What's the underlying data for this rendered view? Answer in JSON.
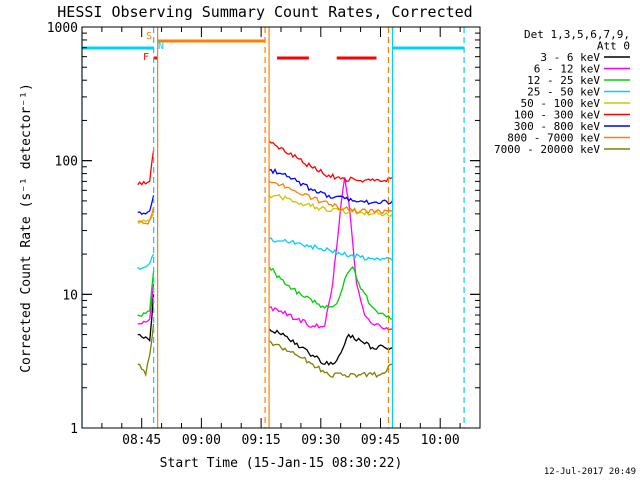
{
  "chart_data": {
    "type": "line",
    "title": "HESSI Observing Summary Count Rates, Corrected",
    "xlabel": "Start Time (15-Jan-15 08:30:22)",
    "ylabel": "Corrected Count Rate (s⁻¹ detector⁻¹)",
    "yscale": "log",
    "ylim": [
      1,
      1000
    ],
    "xlim_minutes_after_0830": [
      0,
      100
    ],
    "x_ticks": [
      "08:45",
      "09:00",
      "09:15",
      "09:30",
      "09:45",
      "10:00"
    ],
    "y_ticks": [
      "1",
      "10",
      "100",
      "1000"
    ],
    "legend_header": [
      "Det 1,3,5,6,7,9,",
      "Att 0"
    ],
    "legend_position": "right",
    "timestamp": "12-Jul-2017 20:49",
    "flags": [
      {
        "label": "S",
        "color": "#ff8000",
        "segments": [
          [
            "08:49",
            "09:16"
          ]
        ]
      },
      {
        "label": "N",
        "color": "#00d0ff",
        "segments": [
          [
            "08:30",
            "08:48"
          ],
          [
            "09:48",
            "10:06"
          ]
        ]
      },
      {
        "label": "F",
        "color": "#ff0000",
        "segments": [
          [
            "08:48",
            "08:49"
          ],
          [
            "09:19",
            "09:27"
          ],
          [
            "09:34",
            "09:44"
          ]
        ]
      }
    ],
    "intervals": [
      {
        "color": "#00d0ff",
        "style": "solid",
        "at": [
          "08:30",
          "09:48"
        ]
      },
      {
        "color": "#00d0ff",
        "style": "dashed",
        "at": [
          "08:48",
          "10:06"
        ]
      },
      {
        "color": "#ff8000",
        "style": "solid",
        "at": [
          "08:49",
          "09:17"
        ]
      },
      {
        "color": "#ff8000",
        "style": "dashed",
        "at": [
          "09:16",
          "09:47"
        ]
      }
    ],
    "series": [
      {
        "name": "3 - 6 keV",
        "color": "#000000",
        "x": [
          "08:44",
          "08:46",
          "08:47",
          "08:48",
          "09:17",
          "09:20",
          "09:25",
          "09:28",
          "09:31",
          "09:34",
          "09:37",
          "09:40",
          "09:43",
          "09:46",
          "09:48"
        ],
        "y": [
          5.0,
          4.8,
          4.5,
          10,
          5.5,
          5.0,
          4.0,
          3.5,
          3.0,
          3.2,
          5.0,
          4.5,
          4.0,
          4.0,
          4.0
        ]
      },
      {
        "name": "6 - 12 keV",
        "color": "#ff00ff",
        "x": [
          "08:44",
          "08:46",
          "08:47",
          "08:48",
          "09:17",
          "09:20",
          "09:24",
          "09:28",
          "09:31",
          "09:33",
          "09:35",
          "09:36",
          "09:37",
          "09:39",
          "09:41",
          "09:43",
          "09:46",
          "09:48"
        ],
        "y": [
          6.0,
          6.2,
          6.5,
          12,
          8.0,
          7.5,
          6.5,
          5.8,
          5.8,
          12,
          45,
          75,
          50,
          12,
          7.0,
          6.0,
          5.5,
          5.5
        ]
      },
      {
        "name": "12 - 25 keV",
        "color": "#00d000",
        "x": [
          "08:44",
          "08:46",
          "08:47",
          "08:48",
          "09:17",
          "09:20",
          "09:23",
          "09:26",
          "09:29",
          "09:32",
          "09:34",
          "09:36",
          "09:38",
          "09:40",
          "09:43",
          "09:46",
          "09:48"
        ],
        "y": [
          7.0,
          7.2,
          7.5,
          15,
          16,
          13,
          11,
          9.5,
          8.5,
          8.0,
          8.5,
          13,
          16,
          11,
          8.0,
          7.0,
          6.5
        ]
      },
      {
        "name": "25 - 50 keV",
        "color": "#00d0ff",
        "x": [
          "08:44",
          "08:46",
          "08:47",
          "08:48",
          "09:17",
          "09:20",
          "09:25",
          "09:30",
          "09:35",
          "09:40",
          "09:45",
          "09:48"
        ],
        "y": [
          16,
          16,
          17,
          20,
          26,
          25,
          24,
          22,
          20,
          19,
          18,
          18
        ]
      },
      {
        "name": "50 - 100 keV",
        "color": "#c8c800",
        "x": [
          "08:44",
          "08:46",
          "08:47",
          "08:48",
          "09:17",
          "09:20",
          "09:25",
          "09:30",
          "09:35",
          "09:40",
          "09:45",
          "09:48"
        ],
        "y": [
          34,
          35,
          36,
          40,
          55,
          53,
          48,
          44,
          42,
          41,
          40,
          40
        ]
      },
      {
        "name": "100 - 300 keV",
        "color": "#ff0000",
        "x": [
          "08:44",
          "08:46",
          "08:47",
          "08:48",
          "09:17",
          "09:20",
          "09:24",
          "09:28",
          "09:32",
          "09:36",
          "09:40",
          "09:45",
          "09:48"
        ],
        "y": [
          66,
          67,
          70,
          120,
          140,
          125,
          105,
          88,
          78,
          73,
          71,
          70,
          75
        ]
      },
      {
        "name": "300 - 800 keV",
        "color": "#0000ff",
        "x": [
          "08:44",
          "08:46",
          "08:47",
          "08:48",
          "09:17",
          "09:20",
          "09:24",
          "09:28",
          "09:32",
          "09:36",
          "09:40",
          "09:45",
          "09:48"
        ],
        "y": [
          41,
          40,
          42,
          55,
          85,
          80,
          70,
          60,
          55,
          52,
          50,
          48,
          50
        ]
      },
      {
        "name": "800 - 7000 keV",
        "color": "#ff8000",
        "x": [
          "08:44",
          "08:46",
          "08:47",
          "08:48",
          "09:17",
          "09:20",
          "09:24",
          "09:28",
          "09:32",
          "09:36",
          "09:40",
          "09:45",
          "09:48"
        ],
        "y": [
          35,
          34,
          36,
          45,
          70,
          66,
          58,
          52,
          47,
          44,
          42,
          41,
          42
        ]
      },
      {
        "name": "7000 - 20000 keV",
        "color": "#808000",
        "x": [
          "08:44",
          "08:46",
          "08:47",
          "08:48",
          "09:17",
          "09:20",
          "09:24",
          "09:28",
          "09:32",
          "09:36",
          "09:40",
          "09:45",
          "09:48"
        ],
        "y": [
          3.0,
          2.5,
          3.5,
          6.0,
          4.5,
          4.0,
          3.5,
          3.0,
          2.5,
          2.5,
          2.5,
          2.5,
          3.0
        ]
      }
    ]
  }
}
